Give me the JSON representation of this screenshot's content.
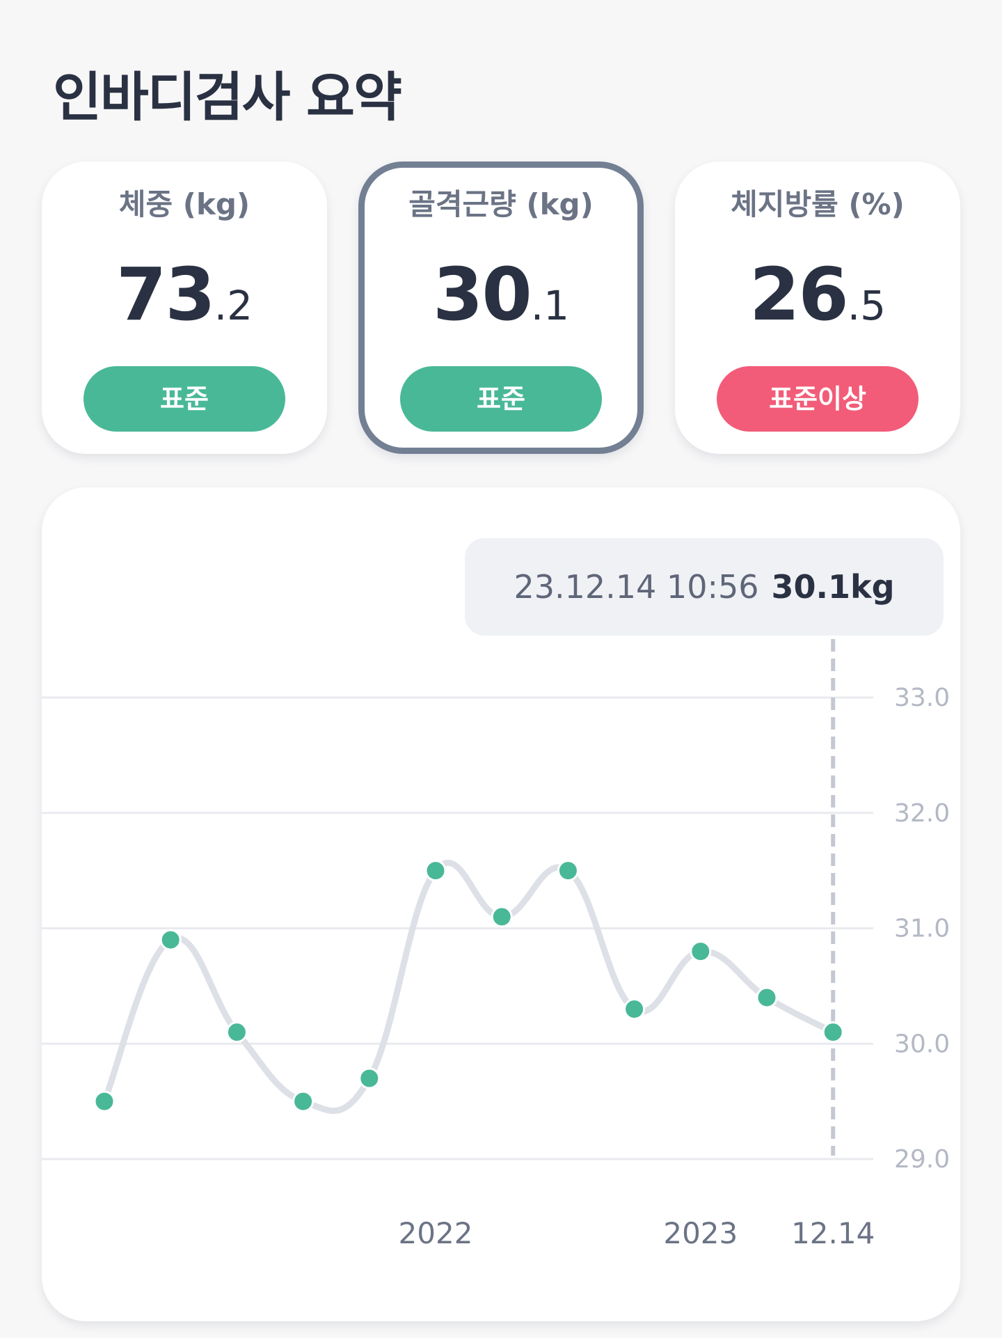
{
  "header": {
    "title": "인바디검사 요약"
  },
  "cards": [
    {
      "label": "체중 (kg)",
      "value_int": "73",
      "value_dec": ".2",
      "status": "표준",
      "status_color": "#49b897",
      "selected": false
    },
    {
      "label": "골격근량 (kg)",
      "value_int": "30",
      "value_dec": ".1",
      "status": "표준",
      "status_color": "#49b897",
      "selected": true
    },
    {
      "label": "체지방률 (%)",
      "value_int": "26",
      "value_dec": ".5",
      "status": "표준이상",
      "status_color": "#f25c78",
      "selected": false
    }
  ],
  "tooltip": {
    "datetime": "23.12.14 10:56",
    "value": "30.1kg"
  },
  "chart_data": {
    "type": "line",
    "series": [
      {
        "values": [
          29.5,
          30.9,
          30.1,
          29.5,
          29.7,
          31.5,
          31.1,
          31.5,
          30.3,
          30.8,
          30.4,
          30.1
        ]
      }
    ],
    "x_labels": [
      {
        "index": 5,
        "label": "2022"
      },
      {
        "index": 9,
        "label": "2023"
      },
      {
        "index": 11,
        "label": "12.14"
      }
    ],
    "y_ticks": [
      "33.0",
      "32.0",
      "31.0",
      "30.0",
      "29.0"
    ],
    "ylim": [
      29.0,
      33.0
    ],
    "grid": true,
    "selected_index": 11,
    "line_color": "#dde0e6",
    "point_color": "#49b897"
  }
}
